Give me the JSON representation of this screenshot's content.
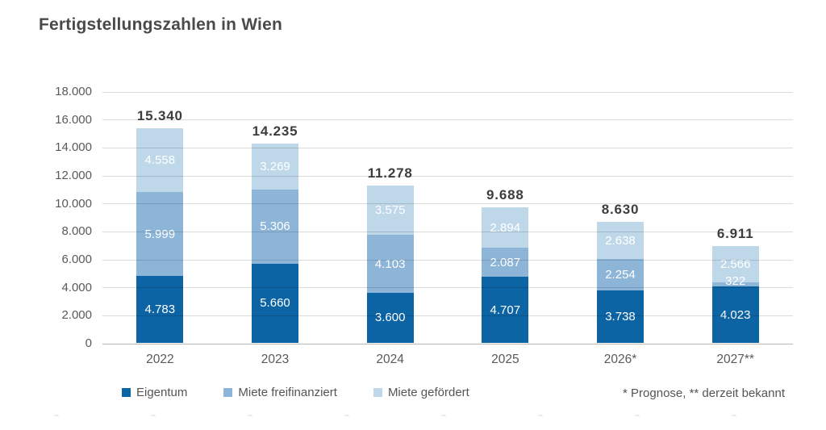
{
  "chart_data": {
    "type": "bar",
    "stacked": true,
    "title": "Fertigstellungszahlen in Wien",
    "categories": [
      "2022",
      "2023",
      "2024",
      "2025",
      "2026*",
      "2027**"
    ],
    "series": [
      {
        "name": "Eigentum",
        "color": "#0d64a5",
        "values": [
          4783,
          5660,
          3600,
          4707,
          3738,
          4023
        ],
        "labels": [
          "4.783",
          "5.660",
          "3.600",
          "4.707",
          "3.738",
          "4.023"
        ]
      },
      {
        "name": "Miete freifinanziert",
        "color": "#8cb5d7",
        "values": [
          5999,
          5306,
          4103,
          2087,
          2254,
          322
        ],
        "labels": [
          "5.999",
          "5.306",
          "4.103",
          "2.087",
          "2.254",
          "322"
        ]
      },
      {
        "name": "Miete gefördert",
        "color": "#bfd8e9",
        "values": [
          4558,
          3269,
          3575,
          2894,
          2638,
          2566
        ],
        "labels": [
          "4.558",
          "3.269",
          "3.575",
          "2.894",
          "2.638",
          "2.566"
        ]
      }
    ],
    "totals": {
      "values": [
        15340,
        14235,
        11278,
        9688,
        8630,
        6911
      ],
      "labels": [
        "15.340",
        "14.235",
        "11.278",
        "9.688",
        "8.630",
        "6.911"
      ]
    },
    "ylim": [
      0,
      18000
    ],
    "ytick_step": 2000,
    "ytick_labels": [
      "0",
      "2.000",
      "4.000",
      "6.000",
      "8.000",
      "10.000",
      "12.000",
      "14.000",
      "16.000",
      "18.000"
    ],
    "grid": true,
    "legend_position": "bottom"
  },
  "footnote": "* Prognose, ** derzeit bekannt",
  "colors": {
    "background": "#ffffff",
    "title_text": "#4a4a4a",
    "axis_text": "#595959",
    "total_text": "#3d3d3d",
    "bar_value_text": "#ffffff",
    "gridline": "#dcdcdc",
    "baseline": "#b8b8b8",
    "eigentum": "#0d64a5",
    "miete_freifinanziert": "#8cb5d7",
    "miete_gefoerdert": "#bfd8e9"
  }
}
